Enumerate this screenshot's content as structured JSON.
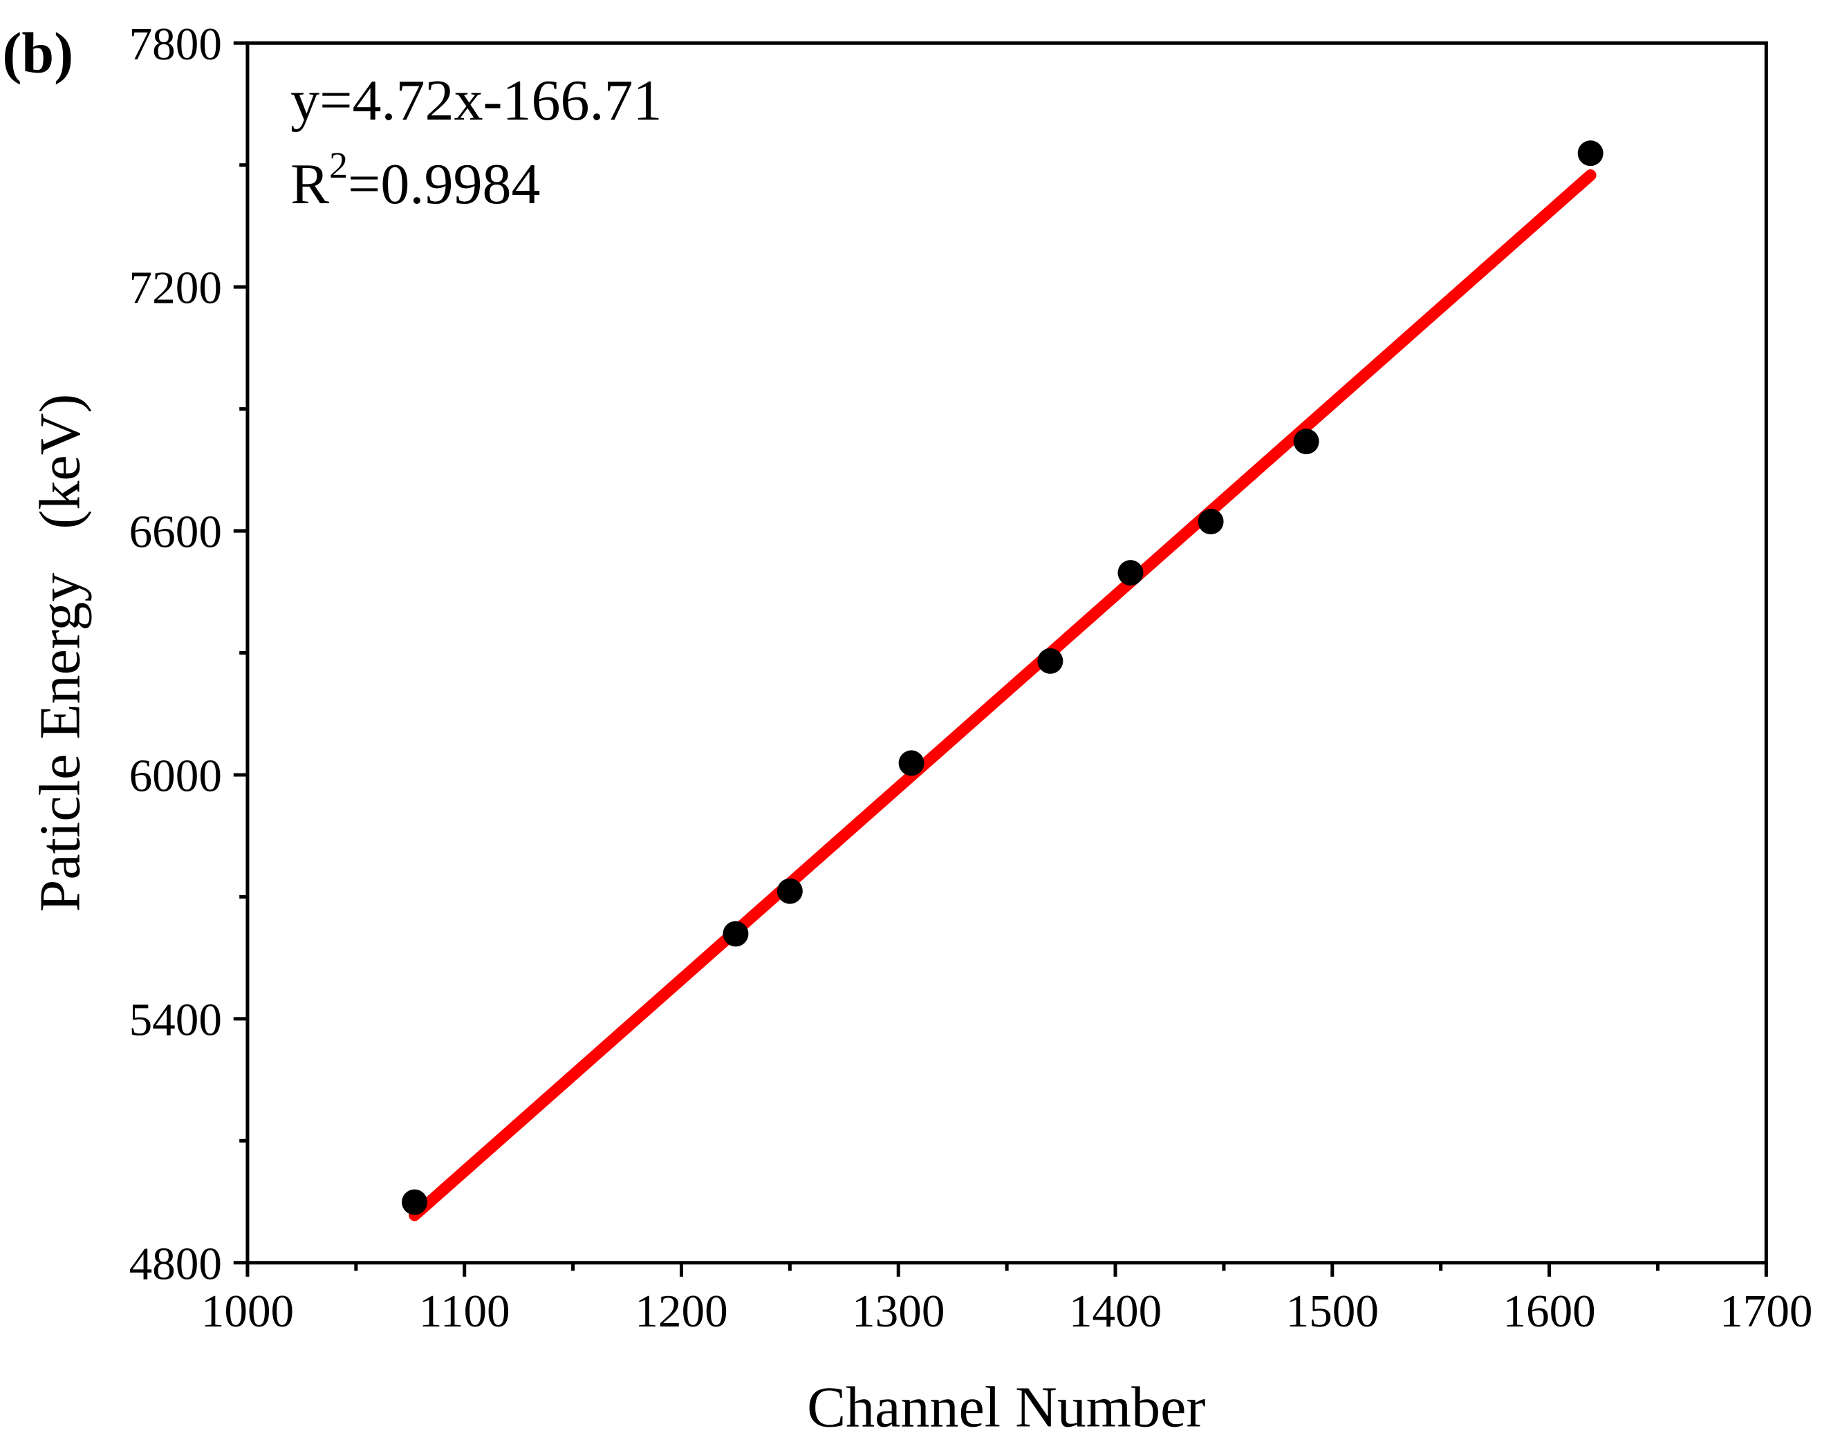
{
  "chart_data": {
    "type": "scatter",
    "panel_label": "(b)",
    "xlabel": "Channel Number",
    "ylabel": "Paticle Energy   (keV)",
    "xlim": [
      1000,
      1700
    ],
    "ylim": [
      4800,
      7800
    ],
    "xticks": [
      "1000",
      "1100",
      "1200",
      "1300",
      "1400",
      "1500",
      "1600",
      "1700"
    ],
    "yticks": [
      "4800",
      "5400",
      "6000",
      "6600",
      "7200",
      "7800"
    ],
    "grid": false,
    "series": [
      {
        "name": "data",
        "x": [
          1077,
          1225,
          1250,
          1306,
          1370,
          1407,
          1444,
          1488,
          1619
        ],
        "y": [
          4949,
          5609,
          5714,
          6029,
          6280,
          6497,
          6623,
          6820,
          7529
        ],
        "color": "#000000"
      },
      {
        "name": "fit",
        "type": "line",
        "slope": 4.72,
        "intercept": -166.71,
        "x_range": [
          1077,
          1619
        ],
        "color": "#ff0000"
      }
    ],
    "annotations": {
      "equation": "y=4.72x-166.71",
      "r2_prefix": "R",
      "r2_sup": "2",
      "r2_value": "=0.9984"
    }
  }
}
